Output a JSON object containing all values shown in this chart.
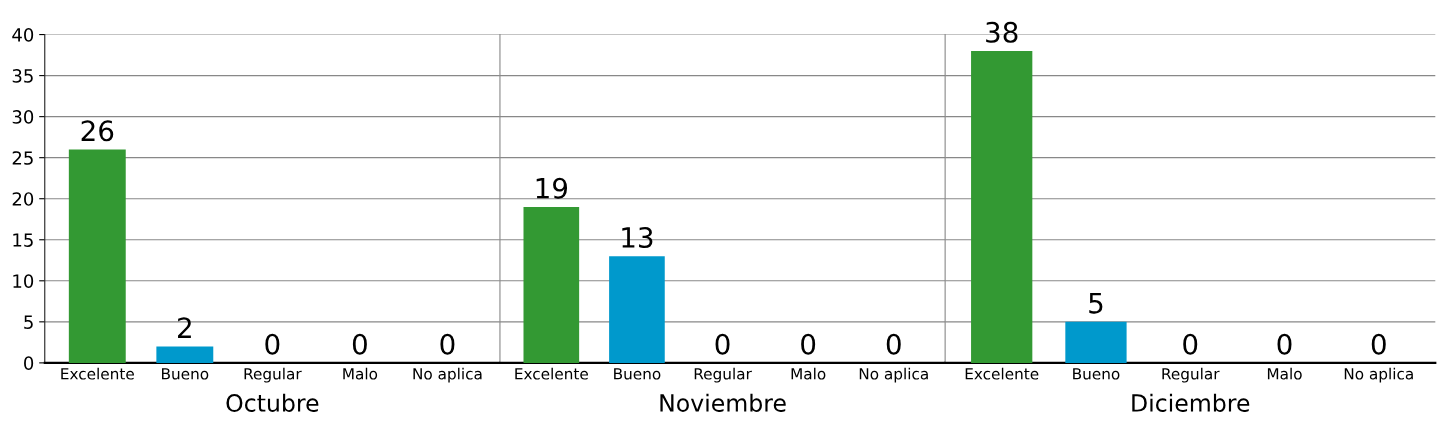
{
  "chart_data": [
    {
      "type": "bar",
      "xlabel": "Octubre",
      "categories": [
        "Excelente",
        "Bueno",
        "Regular",
        "Malo",
        "No aplica"
      ],
      "values": [
        26,
        2,
        0,
        0,
        0
      ],
      "colors": [
        "#339933",
        "#0099cc",
        "#999999",
        "#999999",
        "#999999"
      ],
      "ylim": [
        0,
        40
      ],
      "yticks": [
        0,
        5,
        10,
        15,
        20,
        25,
        30,
        35,
        40
      ],
      "grid": "y",
      "data_labels": true
    },
    {
      "type": "bar",
      "xlabel": "Noviembre",
      "categories": [
        "Excelente",
        "Bueno",
        "Regular",
        "Malo",
        "No aplica"
      ],
      "values": [
        19,
        13,
        0,
        0,
        0
      ],
      "colors": [
        "#339933",
        "#0099cc",
        "#999999",
        "#999999",
        "#999999"
      ],
      "ylim": [
        0,
        40
      ],
      "yticks": [
        0,
        5,
        10,
        15,
        20,
        25,
        30,
        35,
        40
      ],
      "grid": "y",
      "data_labels": true,
      "tick_labels": "x"
    },
    {
      "type": "bar",
      "xlabel": "Diciembre",
      "categories": [
        "Excelente",
        "Bueno",
        "Regular",
        "Malo",
        "No aplica"
      ],
      "values": [
        38,
        5,
        0,
        0,
        0
      ],
      "colors": [
        "#339933",
        "#0099cc",
        "#999999",
        "#999999",
        "#999999"
      ],
      "ylim": [
        0,
        40
      ],
      "yticks": [
        0,
        5,
        10,
        15,
        20,
        25,
        30,
        35,
        40
      ],
      "grid": "y",
      "data_labels": true,
      "tick_labels": "x"
    }
  ]
}
